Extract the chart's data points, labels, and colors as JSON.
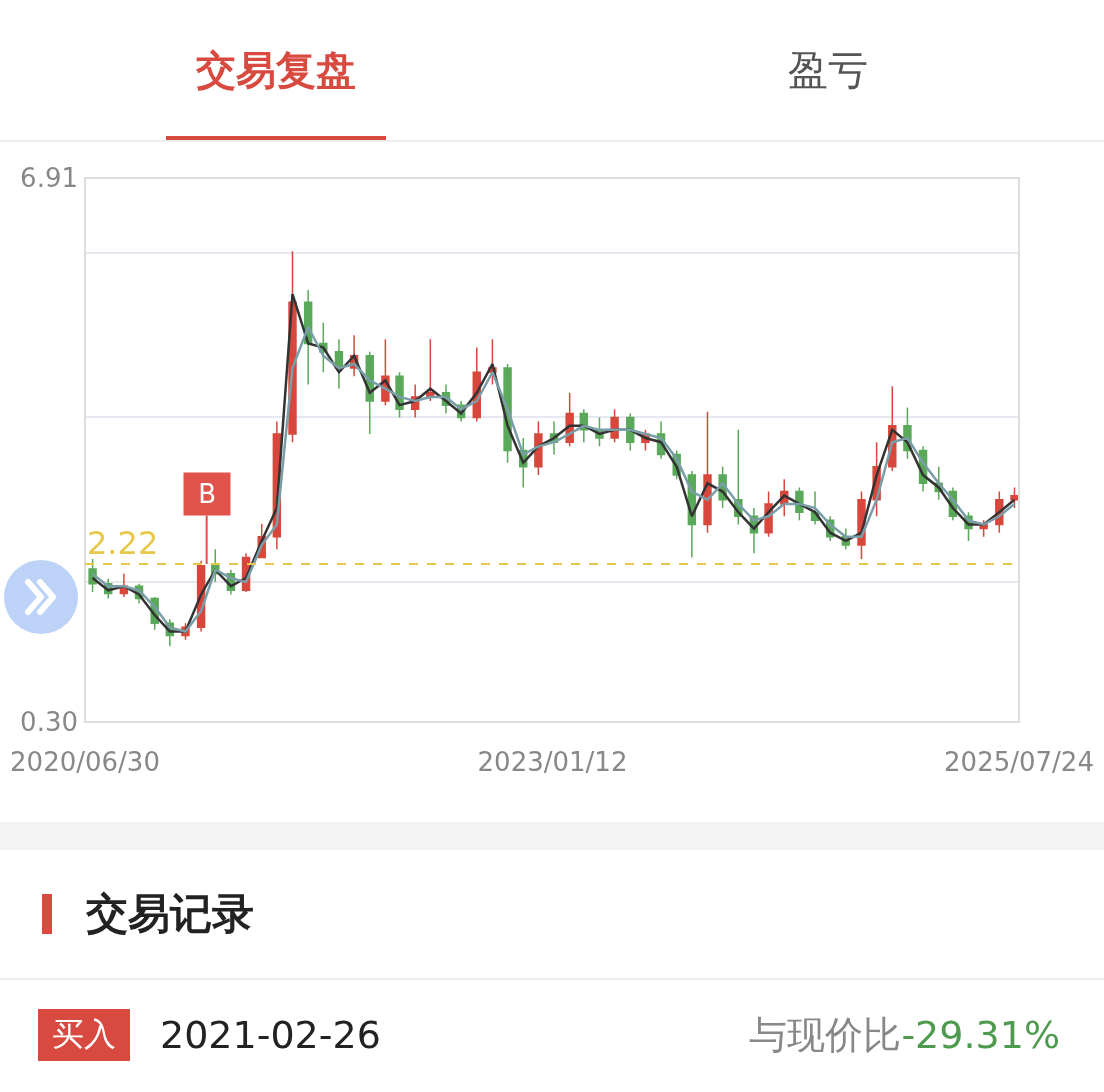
{
  "chart_data": {
    "type": "candlestick",
    "annotations": [
      "交易复盘",
      "盈亏",
      "交易记录",
      "买入",
      "2021-02-26",
      "与现价比",
      "-29.31%",
      {
        "text": "B",
        "x": "2021-02-26",
        "y": 2.22
      }
    ],
    "x": [
      "2020-07-15",
      "2020-08-15",
      "2020-09-15",
      "2020-10-15",
      "2020-11-15",
      "2020-12-15",
      "2021-01-15",
      "2021-02-15",
      "2021-03-15",
      "2021-04-15",
      "2021-05-15",
      "2021-06-15",
      "2021-07-15",
      "2021-08-15",
      "2021-09-15",
      "2021-10-15",
      "2021-11-15",
      "2021-12-15",
      "2022-01-15",
      "2022-02-15",
      "2022-03-15",
      "2022-04-15",
      "2022-05-15",
      "2022-06-15",
      "2022-07-15",
      "2022-08-15",
      "2022-09-15",
      "2022-10-15",
      "2022-11-15",
      "2022-12-15",
      "2023-01-15",
      "2023-02-15",
      "2023-03-15",
      "2023-04-15",
      "2023-05-15",
      "2023-06-15",
      "2023-07-15",
      "2023-08-15",
      "2023-09-15",
      "2023-10-15",
      "2023-11-15",
      "2023-12-15",
      "2024-01-15",
      "2024-02-15",
      "2024-03-15",
      "2024-04-15",
      "2024-05-15",
      "2024-06-15",
      "2024-07-15",
      "2024-08-15",
      "2024-09-15",
      "2024-10-15",
      "2024-11-15",
      "2024-12-15",
      "2025-01-15",
      "2025-02-15",
      "2025-03-15",
      "2025-04-15",
      "2025-05-15",
      "2025-06-15",
      "2025-07-15"
    ],
    "ohlc": [
      [
        2.16,
        2.28,
        1.88,
        1.98
      ],
      [
        1.98,
        2.04,
        1.8,
        1.86
      ],
      [
        1.86,
        2.1,
        1.82,
        1.95
      ],
      [
        1.95,
        1.98,
        1.74,
        1.8
      ],
      [
        1.8,
        1.82,
        1.42,
        1.5
      ],
      [
        1.5,
        1.55,
        1.22,
        1.35
      ],
      [
        1.35,
        1.5,
        1.3,
        1.45
      ],
      [
        1.45,
        2.26,
        1.4,
        2.2
      ],
      [
        2.2,
        2.4,
        2.0,
        2.1
      ],
      [
        2.1,
        2.15,
        1.85,
        1.9
      ],
      [
        1.9,
        2.35,
        1.88,
        2.3
      ],
      [
        2.3,
        2.71,
        2.3,
        2.55
      ],
      [
        2.55,
        3.95,
        2.4,
        3.8
      ],
      [
        3.8,
        6.02,
        3.7,
        5.4
      ],
      [
        5.4,
        5.55,
        4.4,
        4.9
      ],
      [
        4.9,
        5.15,
        4.55,
        4.8
      ],
      [
        4.8,
        4.95,
        4.35,
        4.6
      ],
      [
        4.6,
        5.0,
        4.5,
        4.75
      ],
      [
        4.75,
        4.8,
        3.8,
        4.2
      ],
      [
        4.2,
        4.95,
        4.15,
        4.5
      ],
      [
        4.5,
        4.55,
        4.0,
        4.1
      ],
      [
        4.1,
        4.4,
        4.0,
        4.25
      ],
      [
        4.25,
        4.95,
        4.2,
        4.3
      ],
      [
        4.3,
        4.4,
        4.05,
        4.15
      ],
      [
        4.15,
        4.2,
        3.95,
        4.0
      ],
      [
        4.0,
        4.85,
        3.95,
        4.55
      ],
      [
        4.55,
        4.95,
        4.4,
        4.6
      ],
      [
        4.6,
        4.65,
        3.45,
        3.6
      ],
      [
        3.6,
        3.75,
        3.15,
        3.4
      ],
      [
        3.4,
        3.95,
        3.3,
        3.8
      ],
      [
        3.8,
        3.95,
        3.55,
        3.7
      ],
      [
        3.7,
        4.3,
        3.65,
        4.05
      ],
      [
        4.05,
        4.1,
        3.7,
        3.85
      ],
      [
        3.85,
        4.0,
        3.65,
        3.75
      ],
      [
        3.75,
        4.1,
        3.7,
        4.0
      ],
      [
        4.0,
        4.05,
        3.6,
        3.7
      ],
      [
        3.7,
        3.85,
        3.6,
        3.8
      ],
      [
        3.8,
        3.95,
        3.5,
        3.55
      ],
      [
        3.55,
        3.6,
        3.25,
        3.3
      ],
      [
        3.3,
        3.35,
        2.3,
        2.7
      ],
      [
        2.7,
        4.07,
        2.6,
        3.3
      ],
      [
        3.3,
        3.4,
        2.9,
        3.0
      ],
      [
        3.0,
        3.85,
        2.7,
        2.8
      ],
      [
        2.8,
        2.9,
        2.35,
        2.6
      ],
      [
        2.6,
        3.1,
        2.55,
        2.95
      ],
      [
        2.95,
        3.25,
        2.8,
        3.1
      ],
      [
        3.1,
        3.15,
        2.75,
        2.85
      ],
      [
        2.85,
        3.1,
        2.7,
        2.75
      ],
      [
        2.75,
        2.8,
        2.5,
        2.55
      ],
      [
        2.55,
        2.65,
        2.4,
        2.45
      ],
      [
        2.45,
        3.1,
        2.28,
        3.0
      ],
      [
        3.0,
        3.7,
        2.8,
        3.4
      ],
      [
        3.4,
        4.38,
        3.35,
        3.9
      ],
      [
        3.9,
        4.12,
        3.5,
        3.6
      ],
      [
        3.6,
        3.65,
        3.1,
        3.2
      ],
      [
        3.2,
        3.4,
        3.0,
        3.1
      ],
      [
        3.1,
        3.15,
        2.75,
        2.8
      ],
      [
        2.8,
        2.85,
        2.5,
        2.65
      ],
      [
        2.65,
        2.75,
        2.55,
        2.7
      ],
      [
        2.7,
        3.1,
        2.6,
        3.0
      ],
      [
        3.0,
        3.15,
        2.9,
        3.05
      ]
    ],
    "colors": [
      "#5aa95a",
      "#5aa95a",
      "#d8473c",
      "#5aa95a",
      "#5aa95a",
      "#5aa95a",
      "#d8473c",
      "#d8473c",
      "#5aa95a",
      "#5aa95a",
      "#d8473c",
      "#d8473c",
      "#d8473c",
      "#d8473c",
      "#5aa95a",
      "#5aa95a",
      "#5aa95a",
      "#d8473c",
      "#5aa95a",
      "#d8473c",
      "#5aa95a",
      "#d8473c",
      "#d8473c",
      "#5aa95a",
      "#5aa95a",
      "#d8473c",
      "#d8473c",
      "#5aa95a",
      "#5aa95a",
      "#d8473c",
      "#5aa95a",
      "#d8473c",
      "#5aa95a",
      "#5aa95a",
      "#d8473c",
      "#5aa95a",
      "#d8473c",
      "#5aa95a",
      "#5aa95a",
      "#5aa95a",
      "#d8473c",
      "#5aa95a",
      "#5aa95a",
      "#5aa95a",
      "#d8473c",
      "#d8473c",
      "#5aa95a",
      "#5aa95a",
      "#5aa95a",
      "#5aa95a",
      "#d8473c",
      "#d8473c",
      "#d8473c",
      "#5aa95a",
      "#5aa95a",
      "#5aa95a",
      "#5aa95a",
      "#5aa95a",
      "#d8473c",
      "#d8473c",
      "#d8473c"
    ],
    "series": [
      {
        "type": "line",
        "color": "#333333",
        "values": [
          2.05,
          1.9,
          1.95,
          1.85,
          1.6,
          1.4,
          1.4,
          1.85,
          2.15,
          1.95,
          2.05,
          2.5,
          2.9,
          5.5,
          4.9,
          4.85,
          4.55,
          4.75,
          4.3,
          4.45,
          4.15,
          4.2,
          4.35,
          4.2,
          4.05,
          4.3,
          4.65,
          3.9,
          3.45,
          3.65,
          3.75,
          3.9,
          3.9,
          3.8,
          3.85,
          3.85,
          3.75,
          3.7,
          3.4,
          2.8,
          3.2,
          3.1,
          2.85,
          2.65,
          2.85,
          3.05,
          2.95,
          2.85,
          2.6,
          2.5,
          2.6,
          3.3,
          3.85,
          3.7,
          3.3,
          3.15,
          2.9,
          2.7,
          2.7,
          2.85,
          3.0
        ]
      },
      {
        "type": "line",
        "color": "#7a9ea8",
        "values": [
          2.1,
          1.95,
          1.95,
          1.9,
          1.7,
          1.45,
          1.4,
          1.65,
          2.15,
          2.05,
          2.0,
          2.45,
          2.7,
          4.6,
          5.1,
          4.75,
          4.6,
          4.65,
          4.45,
          4.35,
          4.25,
          4.2,
          4.25,
          4.25,
          4.1,
          4.2,
          4.55,
          4.1,
          3.55,
          3.65,
          3.7,
          3.8,
          3.9,
          3.85,
          3.85,
          3.85,
          3.8,
          3.75,
          3.5,
          3.1,
          3.0,
          3.2,
          2.95,
          2.75,
          2.8,
          2.95,
          2.95,
          2.9,
          2.7,
          2.55,
          2.55,
          3.0,
          3.7,
          3.75,
          3.45,
          3.2,
          3.0,
          2.75,
          2.7,
          2.8,
          2.95
        ]
      }
    ],
    "xlim": [
      "2020-06-30",
      "2025-07-24"
    ],
    "xticks": [
      {
        "value": "2020-06-30",
        "label": "2020/06/30"
      },
      {
        "value": "2023-01-12",
        "label": "2023/01/12"
      },
      {
        "value": "2025-07-24",
        "label": "2025/07/24"
      }
    ],
    "ylim": [
      0.3,
      6.91
    ],
    "yticks": [
      {
        "value": 0.3,
        "label": "0.30"
      },
      {
        "value": 2,
        "label": null
      },
      {
        "value": 4,
        "label": null
      },
      {
        "value": 6,
        "label": null
      },
      6.91
    ],
    "ref_lines": [
      {
        "axis": "y",
        "value": 2.22,
        "label": "2.22",
        "color": "#e6c84a",
        "line_style": "dashed"
      }
    ],
    "grid": "y"
  }
}
